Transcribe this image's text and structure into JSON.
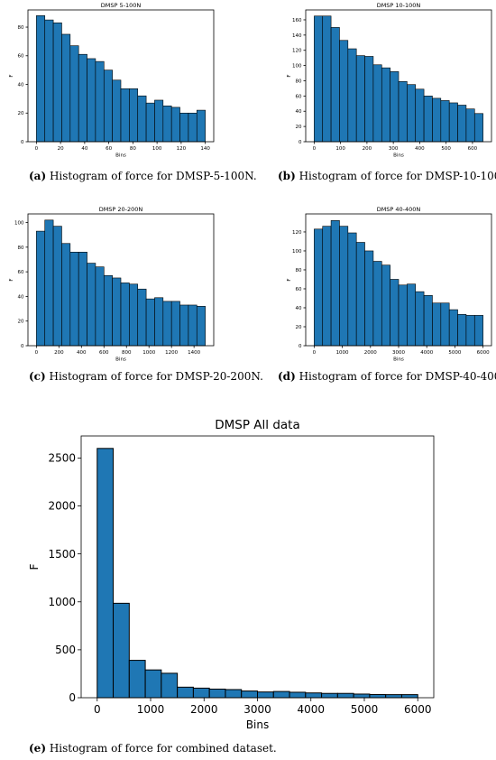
{
  "captions": {
    "a_letter": "(a)",
    "a_text": "Histogram of force for DMSP-5-100N.",
    "b_letter": "(b)",
    "b_text": "Histogram of force for DMSP-10-100N.",
    "c_letter": "(c)",
    "c_text": "Histogram of force for DMSP-20-200N.",
    "d_letter": "(d)",
    "d_text": "Histogram of force for DMSP-40-400N.",
    "e_letter": "(e)",
    "e_text": "Histogram of force for combined dataset."
  },
  "chart_data": [
    {
      "id": "a",
      "type": "bar",
      "title": "DMSP 5-100N",
      "xlabel": "Bins",
      "ylabel": "F",
      "bar_color": "#1f77b4",
      "edge_color": "#000000",
      "x_start": 0,
      "bin_width": 7,
      "values": [
        88,
        85,
        83,
        75,
        67,
        61,
        58,
        56,
        50,
        43,
        37,
        37,
        32,
        27,
        29,
        25,
        24,
        20,
        20,
        22
      ],
      "xlim": [
        -7,
        147
      ],
      "ylim": [
        0,
        92
      ],
      "xticks": [
        0,
        20,
        40,
        60,
        80,
        100,
        120,
        140
      ],
      "yticks": [
        0,
        20,
        40,
        60,
        80
      ]
    },
    {
      "id": "b",
      "type": "bar",
      "title": "DMSP 10-100N",
      "xlabel": "Bins",
      "ylabel": "F",
      "bar_color": "#1f77b4",
      "edge_color": "#000000",
      "x_start": 0,
      "bin_width": 32,
      "values": [
        165,
        165,
        150,
        133,
        122,
        113,
        112,
        101,
        97,
        92,
        79,
        75,
        69,
        60,
        57,
        54,
        51,
        48,
        43,
        37
      ],
      "xlim": [
        -32,
        672
      ],
      "ylim": [
        0,
        173
      ],
      "xticks": [
        0,
        100,
        200,
        300,
        400,
        500,
        600
      ],
      "yticks": [
        0,
        20,
        40,
        60,
        80,
        100,
        120,
        140,
        160
      ]
    },
    {
      "id": "c",
      "type": "bar",
      "title": "DMSP 20-200N",
      "xlabel": "Bins",
      "ylabel": "F",
      "bar_color": "#1f77b4",
      "edge_color": "#000000",
      "x_start": 0,
      "bin_width": 75,
      "values": [
        93,
        102,
        97,
        83,
        76,
        76,
        67,
        64,
        57,
        55,
        51,
        50,
        46,
        38,
        39,
        36,
        36,
        33,
        33,
        32
      ],
      "xlim": [
        -75,
        1575
      ],
      "ylim": [
        0,
        107
      ],
      "xticks": [
        0,
        200,
        400,
        600,
        800,
        1000,
        1200,
        1400
      ],
      "yticks": [
        0,
        20,
        40,
        60,
        80,
        100
      ]
    },
    {
      "id": "d",
      "type": "bar",
      "title": "DMSP 40-400N",
      "xlabel": "Bins",
      "ylabel": "F",
      "bar_color": "#1f77b4",
      "edge_color": "#000000",
      "x_start": 0,
      "bin_width": 300,
      "values": [
        123,
        126,
        132,
        126,
        119,
        109,
        100,
        89,
        85,
        70,
        64,
        65,
        57,
        53,
        45,
        45,
        38,
        33,
        32,
        32
      ],
      "xlim": [
        -300,
        6300
      ],
      "ylim": [
        0,
        139
      ],
      "xticks": [
        0,
        1000,
        2000,
        3000,
        4000,
        5000,
        6000
      ],
      "yticks": [
        0,
        20,
        40,
        60,
        80,
        100,
        120
      ]
    },
    {
      "id": "e",
      "type": "bar",
      "title": "DMSP All data",
      "xlabel": "Bins",
      "ylabel": "F",
      "bar_color": "#1f77b4",
      "edge_color": "#000000",
      "x_start": 0,
      "bin_width": 300,
      "values": [
        2600,
        985,
        390,
        290,
        255,
        110,
        100,
        90,
        85,
        70,
        60,
        65,
        57,
        50,
        45,
        45,
        38,
        33,
        32,
        32
      ],
      "xlim": [
        -300,
        6300
      ],
      "ylim": [
        0,
        2730
      ],
      "xticks": [
        0,
        1000,
        2000,
        3000,
        4000,
        5000,
        6000
      ],
      "yticks": [
        0,
        500,
        1000,
        1500,
        2000,
        2500
      ]
    }
  ]
}
